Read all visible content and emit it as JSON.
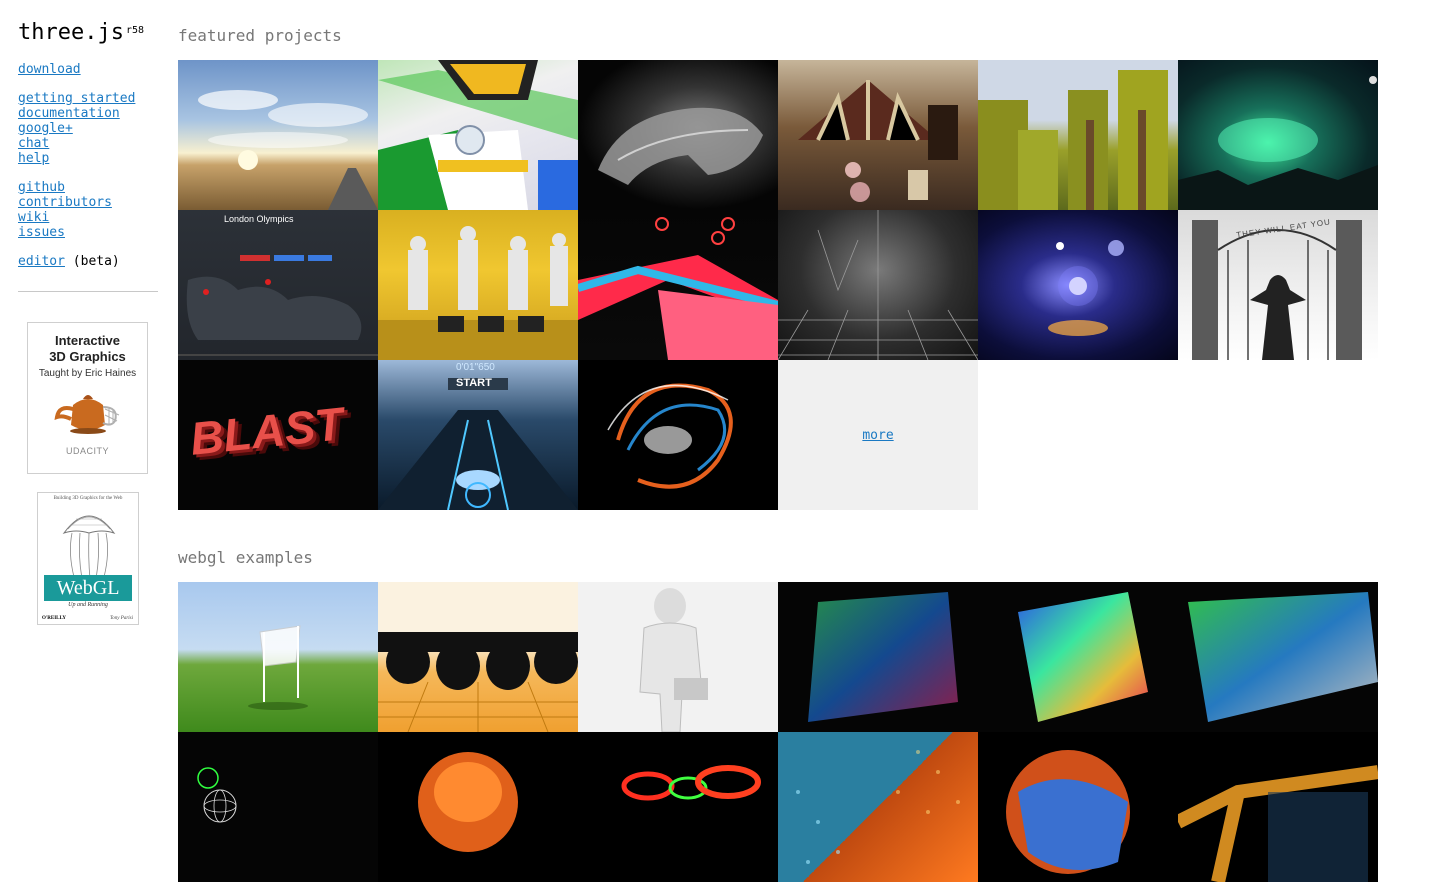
{
  "sidebar": {
    "logo": "three.js",
    "revision": "r58",
    "nav_groups": [
      {
        "links": [
          "download"
        ]
      },
      {
        "links": [
          "getting started",
          "documentation",
          "google+",
          "chat",
          "help"
        ]
      },
      {
        "links": [
          "github",
          "contributors",
          "wiki",
          "issues"
        ]
      }
    ],
    "editor": {
      "label": "editor",
      "note": "(beta)"
    },
    "course_ad": {
      "title_line1": "Interactive",
      "title_line2": "3D Graphics",
      "subtitle": "Taught by Eric Haines",
      "brand": "UDACITY"
    },
    "book_ad": {
      "top_text": "Building 3D Graphics for the Web",
      "title": "WebGL",
      "subtitle": "Up and Running",
      "publisher": "O'REILLY",
      "author": "Tony Parisi"
    }
  },
  "featured": {
    "title": "featured projects",
    "more_label": "more",
    "tile_captions": {
      "london": "London Olympics",
      "start": "START",
      "timer": "0'01\"650",
      "blast": "BLAST",
      "gate": "THEY WILL EAT YOU"
    }
  },
  "webgl": {
    "title": "webgl examples"
  },
  "colors": {
    "link": "#1a79c3",
    "section_title": "#777777",
    "more_tile_bg": "#f0f0f0"
  }
}
